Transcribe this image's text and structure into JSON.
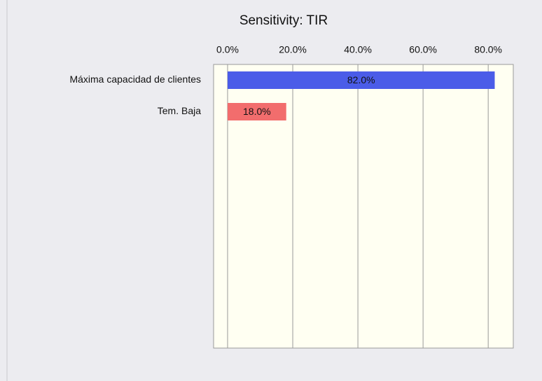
{
  "chart_data": {
    "type": "bar",
    "orientation": "horizontal",
    "title": "Sensitivity: TIR",
    "categories": [
      "Máxima capacidad de clientes",
      "Tem. Baja"
    ],
    "values": [
      82,
      18
    ],
    "value_labels": [
      "82.0%",
      "18.0%"
    ],
    "colors": [
      "#4b5ce8",
      "#f26d6d"
    ],
    "xlim": [
      -4.3,
      87.7
    ],
    "xticks": [
      {
        "value": 0,
        "label": "0.0%"
      },
      {
        "value": 20,
        "label": "20.0%"
      },
      {
        "value": 40,
        "label": "40.0%"
      },
      {
        "value": 60,
        "label": "60.0%"
      },
      {
        "value": 80,
        "label": "80.0%"
      }
    ],
    "grid": true
  }
}
